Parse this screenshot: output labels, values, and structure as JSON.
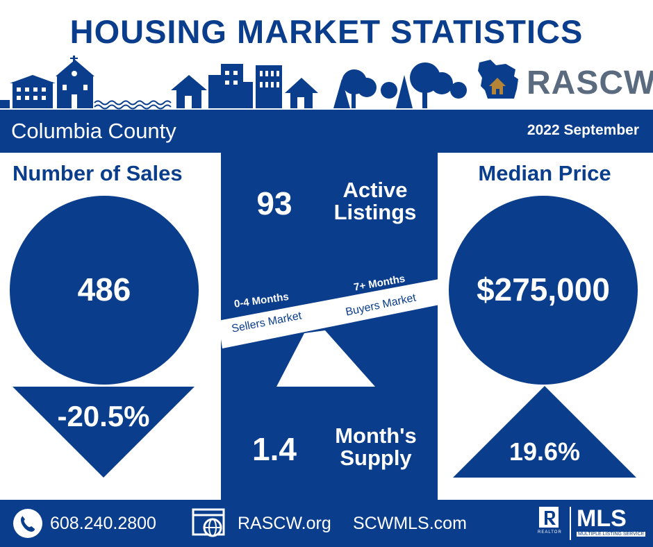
{
  "header": {
    "title": "HOUSING MARKET STATISTICS",
    "brand": "RASCW"
  },
  "bar": {
    "county": "Columbia County",
    "period": "2022 September"
  },
  "sales": {
    "label": "Number of Sales",
    "value": "486",
    "change": "-20.5%"
  },
  "active": {
    "value": "93",
    "label_line1": "Active",
    "label_line2": "Listings"
  },
  "scale": {
    "left_top": "0-4 Months",
    "left_bottom": "Sellers Market",
    "right_top": "7+ Months",
    "right_bottom": "Buyers Market"
  },
  "supply": {
    "value": "1.4",
    "label_line1": "Month's",
    "label_line2": "Supply"
  },
  "price": {
    "label": "Median Price",
    "value": "$275,000",
    "change": "19.6%"
  },
  "footer": {
    "phone": "608.240.2800",
    "site1": "RASCW.org",
    "site2": "SCWMLS.com",
    "mls": "MLS",
    "mls_sub": "MULTIPLE LISTING SERVICE",
    "realtor": "REALTOR"
  },
  "colors": {
    "navy": "#0a3d8c",
    "gray": "#5b6b7f",
    "house": "#b58437"
  }
}
